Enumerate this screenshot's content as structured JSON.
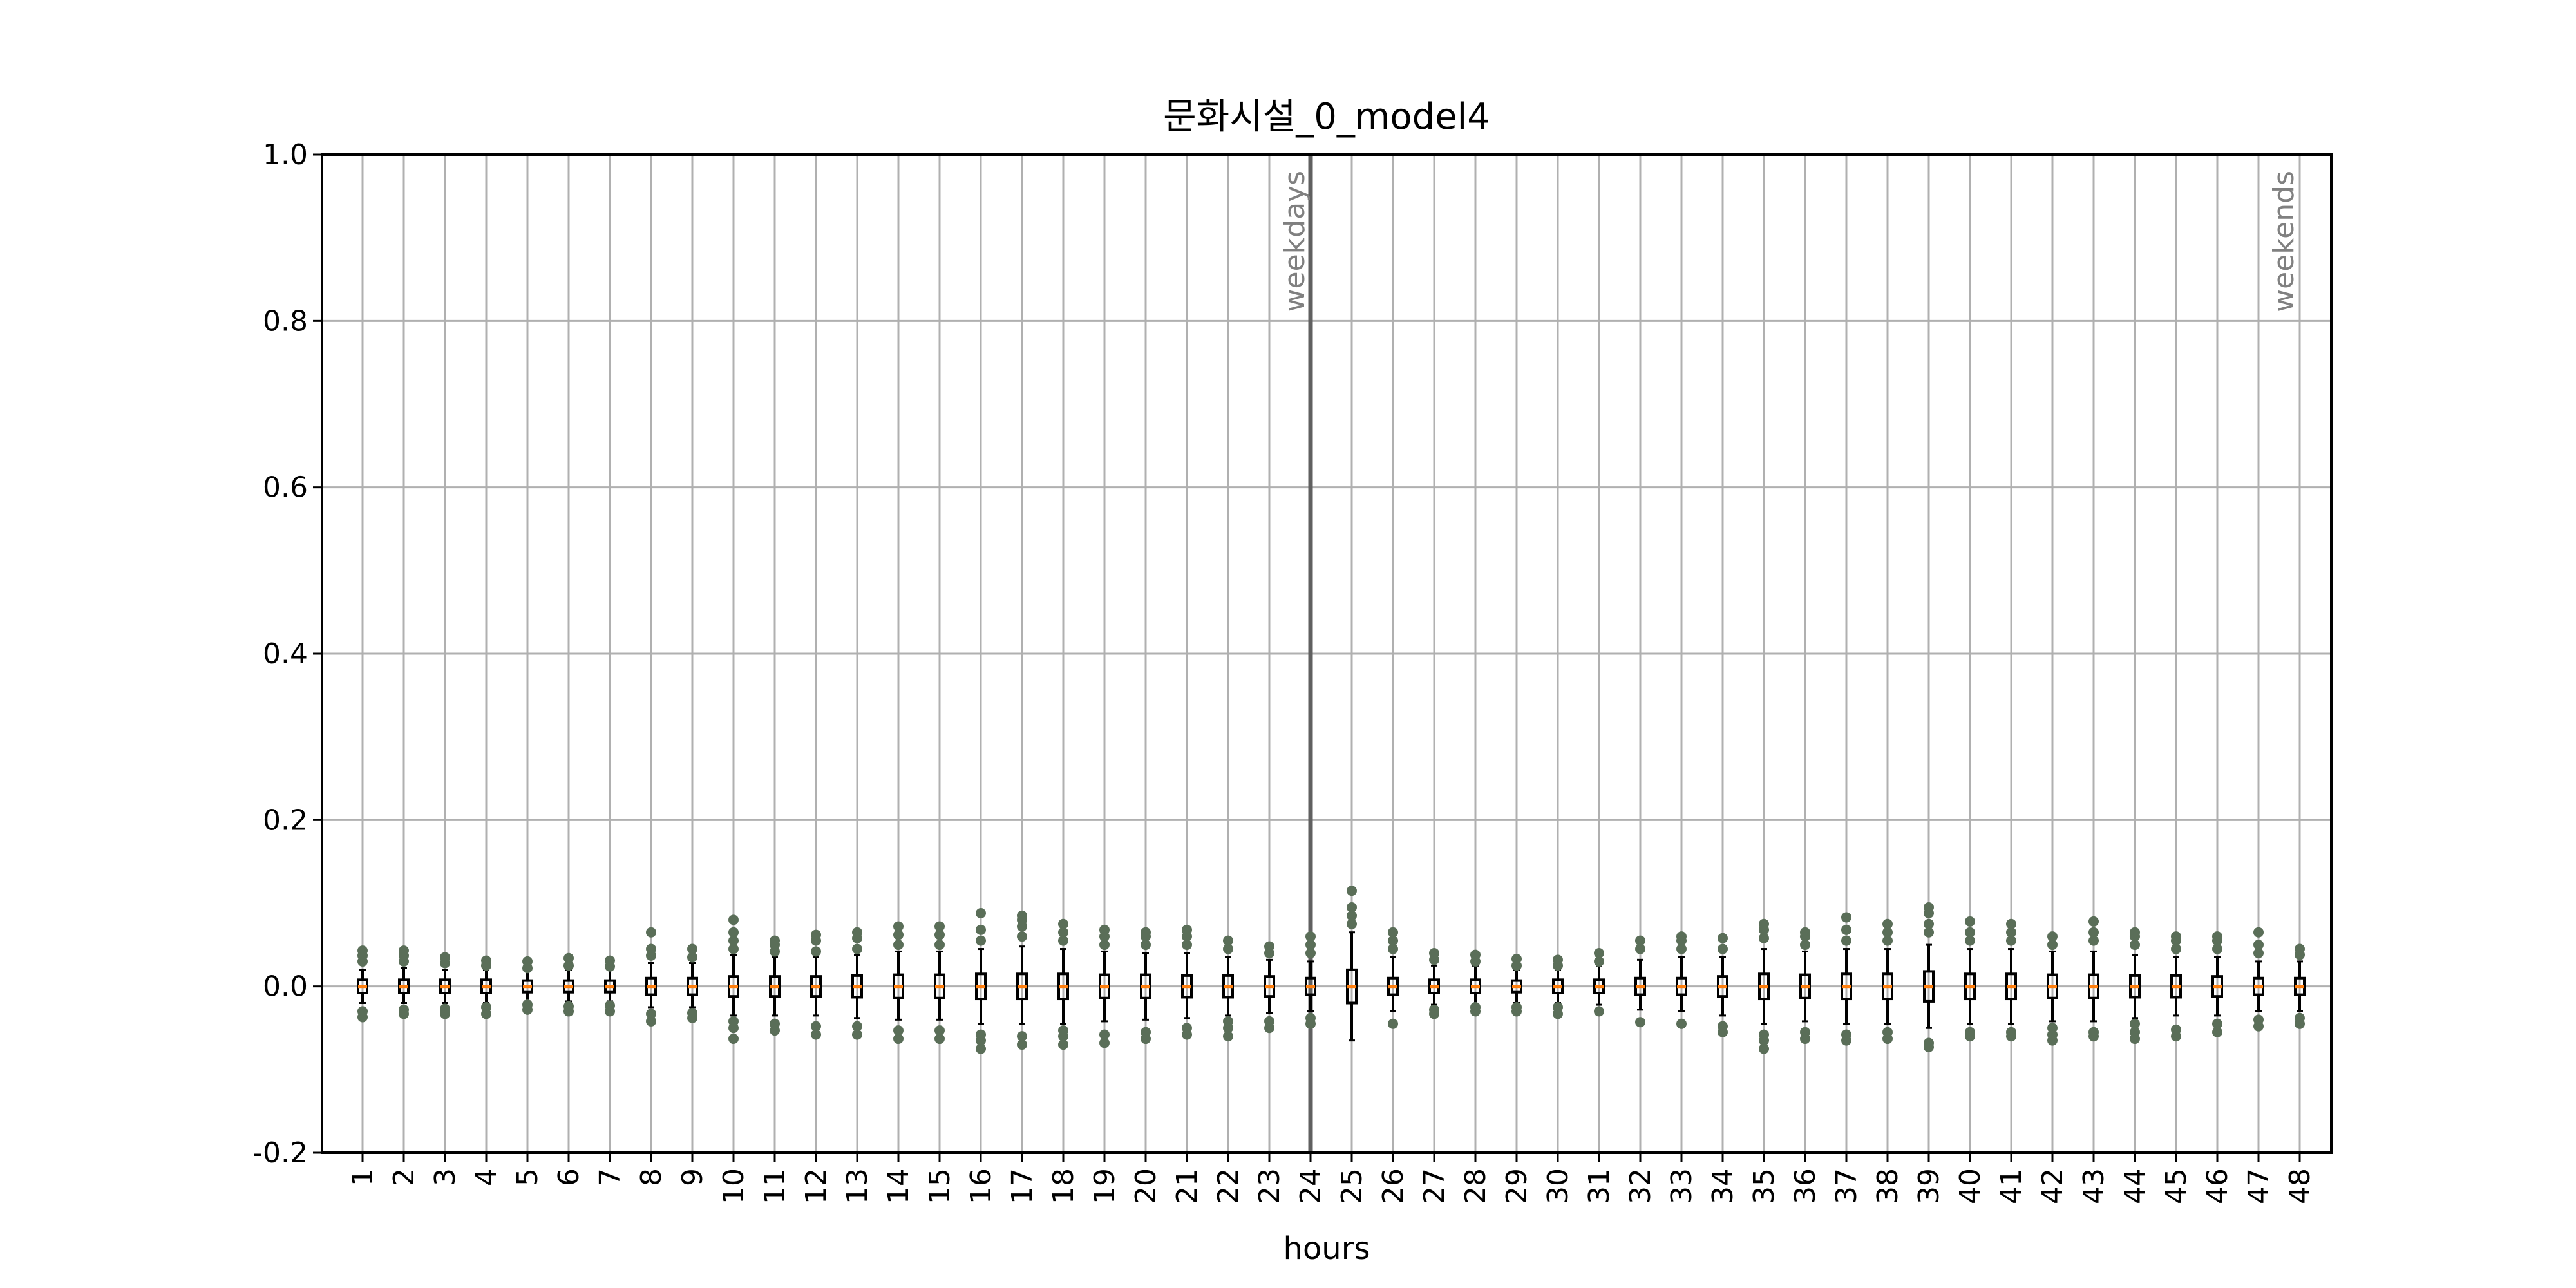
{
  "chart_data": {
    "type": "box",
    "title": "문화시설_0_model4",
    "xlabel": "hours",
    "ylabel": "",
    "ylim": [
      -0.2,
      1.0
    ],
    "yticks": [
      "-0.2",
      "0.0",
      "0.2",
      "0.4",
      "0.6",
      "0.8",
      "1.0"
    ],
    "ytick_values": [
      -0.2,
      0.0,
      0.2,
      0.4,
      0.6,
      0.8,
      1.0
    ],
    "categories": [
      "1",
      "2",
      "3",
      "4",
      "5",
      "6",
      "7",
      "8",
      "9",
      "10",
      "11",
      "12",
      "13",
      "14",
      "15",
      "16",
      "17",
      "18",
      "19",
      "20",
      "21",
      "22",
      "23",
      "24",
      "25",
      "26",
      "27",
      "28",
      "29",
      "30",
      "31",
      "32",
      "33",
      "34",
      "35",
      "36",
      "37",
      "38",
      "39",
      "40",
      "41",
      "42",
      "43",
      "44",
      "45",
      "46",
      "47",
      "48"
    ],
    "grid": true,
    "divider_after_hour": 24,
    "annotations": [
      {
        "text": "weekdays",
        "hour": 24
      },
      {
        "text": "weekends",
        "hour": 48
      }
    ],
    "series": [
      {
        "boxes": [
          {
            "q1": -0.008,
            "med": 0,
            "q3": 0.008,
            "wlo": -0.02,
            "whi": 0.02,
            "out": [
              -0.037,
              -0.03,
              0.03,
              0.037,
              0.043
            ]
          },
          {
            "q1": -0.008,
            "med": 0,
            "q3": 0.008,
            "wlo": -0.02,
            "whi": 0.022,
            "out": [
              -0.033,
              -0.028,
              0.03,
              0.037,
              0.043
            ]
          },
          {
            "q1": -0.008,
            "med": 0,
            "q3": 0.008,
            "wlo": -0.02,
            "whi": 0.02,
            "out": [
              -0.033,
              -0.027,
              0.028,
              0.035
            ]
          },
          {
            "q1": -0.008,
            "med": 0,
            "q3": 0.008,
            "wlo": -0.02,
            "whi": 0.02,
            "out": [
              -0.033,
              -0.025,
              0.025,
              0.031
            ]
          },
          {
            "q1": -0.007,
            "med": 0,
            "q3": 0.007,
            "wlo": -0.018,
            "whi": 0.018,
            "out": [
              -0.028,
              -0.022,
              0.022,
              0.03
            ]
          },
          {
            "q1": -0.007,
            "med": 0,
            "q3": 0.007,
            "wlo": -0.018,
            "whi": 0.02,
            "out": [
              -0.03,
              -0.024,
              0.025,
              0.034
            ]
          },
          {
            "q1": -0.007,
            "med": 0,
            "q3": 0.007,
            "wlo": -0.018,
            "whi": 0.02,
            "out": [
              -0.03,
              -0.023,
              0.024,
              0.031
            ]
          },
          {
            "q1": -0.01,
            "med": 0,
            "q3": 0.01,
            "wlo": -0.025,
            "whi": 0.028,
            "out": [
              -0.042,
              -0.033,
              0.037,
              0.045,
              0.065
            ]
          },
          {
            "q1": -0.01,
            "med": 0,
            "q3": 0.01,
            "wlo": -0.025,
            "whi": 0.028,
            "out": [
              -0.038,
              -0.032,
              0.035,
              0.045
            ]
          },
          {
            "q1": -0.012,
            "med": 0,
            "q3": 0.012,
            "wlo": -0.035,
            "whi": 0.038,
            "out": [
              -0.063,
              -0.05,
              -0.042,
              0.045,
              0.055,
              0.065,
              0.08
            ]
          },
          {
            "q1": -0.012,
            "med": 0,
            "q3": 0.012,
            "wlo": -0.035,
            "whi": 0.035,
            "out": [
              -0.053,
              -0.045,
              0.042,
              0.05,
              0.055
            ]
          },
          {
            "q1": -0.012,
            "med": 0,
            "q3": 0.012,
            "wlo": -0.035,
            "whi": 0.035,
            "out": [
              -0.058,
              -0.048,
              0.042,
              0.055,
              0.062
            ]
          },
          {
            "q1": -0.013,
            "med": 0,
            "q3": 0.013,
            "wlo": -0.038,
            "whi": 0.038,
            "out": [
              -0.058,
              -0.048,
              0.045,
              0.058,
              0.065
            ]
          },
          {
            "q1": -0.014,
            "med": 0,
            "q3": 0.014,
            "wlo": -0.04,
            "whi": 0.042,
            "out": [
              -0.063,
              -0.053,
              0.05,
              0.062,
              0.072
            ]
          },
          {
            "q1": -0.014,
            "med": 0,
            "q3": 0.014,
            "wlo": -0.04,
            "whi": 0.042,
            "out": [
              -0.063,
              -0.053,
              0.05,
              0.062,
              0.072
            ]
          },
          {
            "q1": -0.015,
            "med": 0,
            "q3": 0.015,
            "wlo": -0.045,
            "whi": 0.045,
            "out": [
              -0.075,
              -0.065,
              -0.058,
              0.055,
              0.068,
              0.088
            ]
          },
          {
            "q1": -0.015,
            "med": 0,
            "q3": 0.015,
            "wlo": -0.045,
            "whi": 0.048,
            "out": [
              -0.07,
              -0.06,
              0.06,
              0.072,
              0.08,
              0.085
            ]
          },
          {
            "q1": -0.015,
            "med": 0,
            "q3": 0.015,
            "wlo": -0.045,
            "whi": 0.045,
            "out": [
              -0.07,
              -0.06,
              -0.053,
              0.055,
              0.065,
              0.075
            ]
          },
          {
            "q1": -0.014,
            "med": 0,
            "q3": 0.014,
            "wlo": -0.042,
            "whi": 0.042,
            "out": [
              -0.068,
              -0.058,
              0.05,
              0.06,
              0.068
            ]
          },
          {
            "q1": -0.014,
            "med": 0,
            "q3": 0.014,
            "wlo": -0.04,
            "whi": 0.04,
            "out": [
              -0.063,
              -0.055,
              0.05,
              0.06,
              0.065
            ]
          },
          {
            "q1": -0.013,
            "med": 0,
            "q3": 0.013,
            "wlo": -0.038,
            "whi": 0.04,
            "out": [
              -0.058,
              -0.05,
              0.05,
              0.06,
              0.068
            ]
          },
          {
            "q1": -0.013,
            "med": 0,
            "q3": 0.013,
            "wlo": -0.035,
            "whi": 0.035,
            "out": [
              -0.06,
              -0.05,
              -0.042,
              0.045,
              0.055
            ]
          },
          {
            "q1": -0.012,
            "med": 0,
            "q3": 0.012,
            "wlo": -0.032,
            "whi": 0.032,
            "out": [
              -0.05,
              -0.042,
              0.04,
              0.048
            ]
          },
          {
            "q1": -0.01,
            "med": 0,
            "q3": 0.01,
            "wlo": -0.03,
            "whi": 0.03,
            "out": [
              -0.045,
              -0.038,
              0.04,
              0.05,
              0.06
            ]
          },
          {
            "q1": -0.02,
            "med": 0,
            "q3": 0.02,
            "wlo": -0.065,
            "whi": 0.065,
            "out": [
              0.075,
              0.085,
              0.095,
              0.115
            ]
          },
          {
            "q1": -0.01,
            "med": 0,
            "q3": 0.01,
            "wlo": -0.03,
            "whi": 0.035,
            "out": [
              -0.045,
              0.045,
              0.055,
              0.065
            ]
          },
          {
            "q1": -0.008,
            "med": 0,
            "q3": 0.008,
            "wlo": -0.022,
            "whi": 0.025,
            "out": [
              -0.033,
              -0.028,
              0.032,
              0.04
            ]
          },
          {
            "q1": -0.008,
            "med": 0,
            "q3": 0.008,
            "wlo": -0.022,
            "whi": 0.025,
            "out": [
              -0.03,
              -0.025,
              0.03,
              0.038
            ]
          },
          {
            "q1": -0.007,
            "med": 0,
            "q3": 0.007,
            "wlo": -0.02,
            "whi": 0.02,
            "out": [
              -0.03,
              -0.025,
              0.025,
              0.033
            ]
          },
          {
            "q1": -0.008,
            "med": 0,
            "q3": 0.008,
            "wlo": -0.02,
            "whi": 0.02,
            "out": [
              -0.033,
              -0.025,
              0.025,
              0.032
            ]
          },
          {
            "q1": -0.008,
            "med": 0,
            "q3": 0.008,
            "wlo": -0.022,
            "whi": 0.025,
            "out": [
              -0.03,
              0.03,
              0.04
            ]
          },
          {
            "q1": -0.01,
            "med": 0,
            "q3": 0.01,
            "wlo": -0.028,
            "whi": 0.032,
            "out": [
              -0.043,
              0.045,
              0.055
            ]
          },
          {
            "q1": -0.01,
            "med": 0,
            "q3": 0.01,
            "wlo": -0.03,
            "whi": 0.035,
            "out": [
              -0.045,
              0.045,
              0.055,
              0.06
            ]
          },
          {
            "q1": -0.012,
            "med": 0,
            "q3": 0.012,
            "wlo": -0.035,
            "whi": 0.035,
            "out": [
              -0.055,
              -0.048,
              0.045,
              0.058
            ]
          },
          {
            "q1": -0.015,
            "med": 0,
            "q3": 0.015,
            "wlo": -0.045,
            "whi": 0.045,
            "out": [
              -0.075,
              -0.065,
              -0.058,
              0.058,
              0.068,
              0.075
            ]
          },
          {
            "q1": -0.014,
            "med": 0,
            "q3": 0.014,
            "wlo": -0.042,
            "whi": 0.042,
            "out": [
              -0.063,
              -0.055,
              0.05,
              0.06,
              0.065
            ]
          },
          {
            "q1": -0.015,
            "med": 0,
            "q3": 0.015,
            "wlo": -0.045,
            "whi": 0.045,
            "out": [
              -0.065,
              -0.058,
              0.055,
              0.068,
              0.083
            ]
          },
          {
            "q1": -0.015,
            "med": 0,
            "q3": 0.015,
            "wlo": -0.045,
            "whi": 0.045,
            "out": [
              -0.063,
              -0.055,
              0.055,
              0.065,
              0.075
            ]
          },
          {
            "q1": -0.018,
            "med": 0,
            "q3": 0.018,
            "wlo": -0.05,
            "whi": 0.05,
            "out": [
              -0.073,
              -0.068,
              0.065,
              0.075,
              0.088,
              0.095
            ]
          },
          {
            "q1": -0.015,
            "med": 0,
            "q3": 0.015,
            "wlo": -0.045,
            "whi": 0.045,
            "out": [
              -0.06,
              -0.055,
              0.055,
              0.065,
              0.078
            ]
          },
          {
            "q1": -0.015,
            "med": 0,
            "q3": 0.015,
            "wlo": -0.045,
            "whi": 0.045,
            "out": [
              -0.06,
              -0.055,
              0.055,
              0.065,
              0.075
            ]
          },
          {
            "q1": -0.014,
            "med": 0,
            "q3": 0.014,
            "wlo": -0.042,
            "whi": 0.042,
            "out": [
              -0.065,
              -0.058,
              -0.05,
              0.05,
              0.06
            ]
          },
          {
            "q1": -0.014,
            "med": 0,
            "q3": 0.014,
            "wlo": -0.042,
            "whi": 0.042,
            "out": [
              -0.06,
              -0.055,
              0.055,
              0.065,
              0.078
            ]
          },
          {
            "q1": -0.013,
            "med": 0,
            "q3": 0.013,
            "wlo": -0.038,
            "whi": 0.038,
            "out": [
              -0.063,
              -0.055,
              -0.045,
              0.05,
              0.06,
              0.065
            ]
          },
          {
            "q1": -0.013,
            "med": 0,
            "q3": 0.013,
            "wlo": -0.035,
            "whi": 0.035,
            "out": [
              -0.06,
              -0.052,
              0.045,
              0.055,
              0.06
            ]
          },
          {
            "q1": -0.012,
            "med": 0,
            "q3": 0.012,
            "wlo": -0.035,
            "whi": 0.035,
            "out": [
              -0.055,
              -0.045,
              0.045,
              0.055,
              0.06
            ]
          },
          {
            "q1": -0.01,
            "med": 0,
            "q3": 0.01,
            "wlo": -0.03,
            "whi": 0.03,
            "out": [
              -0.048,
              -0.04,
              0.04,
              0.05,
              0.065
            ]
          },
          {
            "q1": -0.01,
            "med": 0,
            "q3": 0.01,
            "wlo": -0.03,
            "whi": 0.03,
            "out": [
              -0.045,
              -0.038,
              0.038,
              0.045
            ]
          }
        ]
      }
    ],
    "colors": {
      "box": "#000000",
      "median": "#ff7f0e",
      "outlier": "#5a6e58",
      "grid": "#b0b0b0",
      "divider": "#606060",
      "annotation": "#808080"
    }
  }
}
